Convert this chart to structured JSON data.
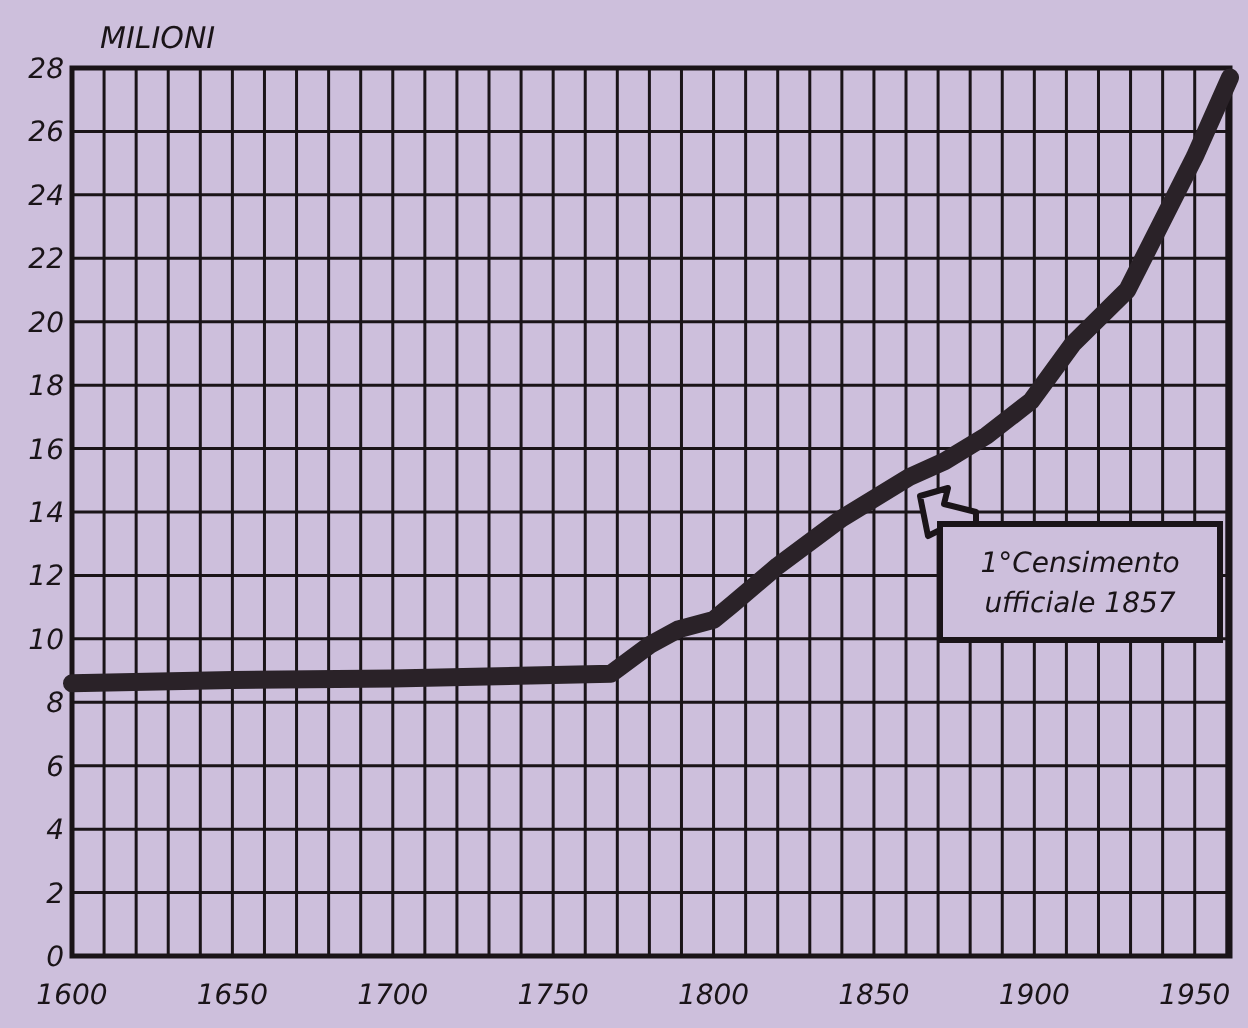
{
  "chart_data": {
    "type": "line",
    "ylabel": "MILIONI",
    "x": [
      1600,
      1650,
      1700,
      1768,
      1780,
      1789,
      1800,
      1806,
      1820,
      1840,
      1861,
      1872,
      1885,
      1899,
      1912,
      1929,
      1940,
      1950,
      1961
    ],
    "series": [
      {
        "color": "#2a2228",
        "values": [
          8.6,
          8.7,
          8.75,
          8.9,
          9.8,
          10.3,
          10.6,
          11.1,
          12.3,
          13.8,
          15.1,
          15.6,
          16.4,
          17.5,
          19.3,
          21,
          23.2,
          25.2,
          27.7
        ]
      }
    ],
    "xlim": [
      1600,
      1961
    ],
    "xticks": [
      1600,
      {
        "value": 1610,
        "label": null
      },
      {
        "value": 1620,
        "label": null
      },
      {
        "value": 1630,
        "label": null
      },
      {
        "value": 1640,
        "label": null
      },
      1650,
      {
        "value": 1660,
        "label": null
      },
      {
        "value": 1670,
        "label": null
      },
      {
        "value": 1680,
        "label": null
      },
      {
        "value": 1690,
        "label": null
      },
      1700,
      {
        "value": 1710,
        "label": null
      },
      {
        "value": 1720,
        "label": null
      },
      {
        "value": 1730,
        "label": null
      },
      {
        "value": 1740,
        "label": null
      },
      1750,
      {
        "value": 1760,
        "label": null
      },
      {
        "value": 1770,
        "label": null
      },
      {
        "value": 1780,
        "label": null
      },
      {
        "value": 1790,
        "label": null
      },
      1800,
      {
        "value": 1810,
        "label": null
      },
      {
        "value": 1820,
        "label": null
      },
      {
        "value": 1830,
        "label": null
      },
      {
        "value": 1840,
        "label": null
      },
      1850,
      {
        "value": 1860,
        "label": null
      },
      {
        "value": 1870,
        "label": null
      },
      {
        "value": 1880,
        "label": null
      },
      {
        "value": 1890,
        "label": null
      },
      1900,
      {
        "value": 1910,
        "label": null
      },
      {
        "value": 1920,
        "label": null
      },
      {
        "value": 1930,
        "label": null
      },
      {
        "value": 1940,
        "label": null
      },
      1950,
      {
        "value": 1960,
        "label": null
      }
    ],
    "ylim": [
      0,
      28
    ],
    "yticks": [
      0,
      2,
      4,
      6,
      8,
      10,
      12,
      14,
      16,
      18,
      20,
      22,
      24,
      26,
      28
    ],
    "grid": true,
    "marker": "none",
    "line_style": "solid",
    "annotations": [
      "1°Censimento\nufficiale 1857"
    ]
  }
}
